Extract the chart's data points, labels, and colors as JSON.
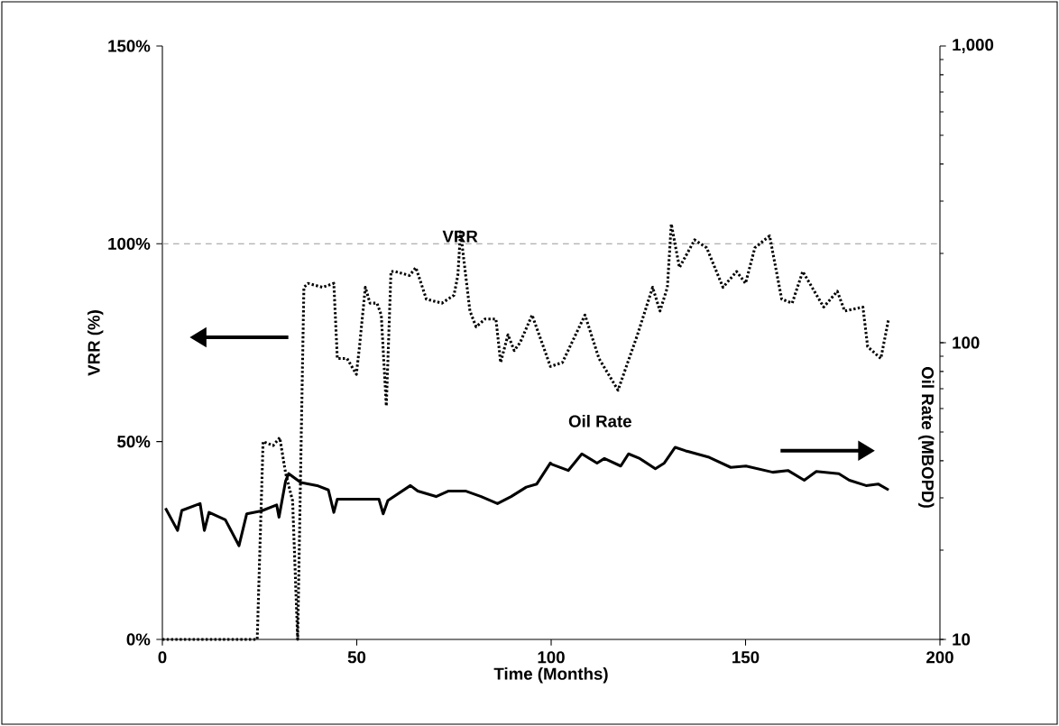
{
  "chart_data": {
    "type": "line",
    "xlabel": "Time (Months)",
    "ylabel": "VRR (%)",
    "y2label": "Oil Rate (MBOPD)",
    "xlim": [
      0,
      200
    ],
    "xticks": [
      0,
      50,
      100,
      150,
      200
    ],
    "ylim": [
      0,
      150
    ],
    "yticks": [
      {
        "value": 0,
        "label": "0%"
      },
      {
        "value": 50,
        "label": "50%"
      },
      {
        "value": 100,
        "label": "100%"
      },
      {
        "value": 150,
        "label": "150%"
      }
    ],
    "y2lim": [
      10,
      1000
    ],
    "y2ticks": [
      10,
      100,
      {
        "value": 1000,
        "label": "1,000"
      }
    ],
    "log": "y2",
    "ref_lines": [
      {
        "axis": "y",
        "value": 100,
        "color": "#999999",
        "line_style": "dashed"
      }
    ],
    "series": [
      {
        "name": "VRR",
        "color": "#000000",
        "line_style": "dotted",
        "x": [
          0,
          24.4,
          25.9,
          28.5,
          30.2,
          31.7,
          33.5,
          34.8,
          36.4,
          37.5,
          41.2,
          44.1,
          45,
          47.5,
          49.9,
          50.7,
          52.2,
          53.4,
          55.2,
          56.3,
          57.6,
          58.8,
          59.8,
          63.6,
          65.2,
          67.9,
          71.9,
          75,
          76,
          76.7,
          79.1,
          80.7,
          83,
          85.8,
          87,
          88.9,
          90.5,
          92,
          95.1,
          99.8,
          102.9,
          108.7,
          112.3,
          117.2,
          122.2,
          126.1,
          128,
          129.9,
          130.9,
          133,
          136.9,
          140,
          144.2,
          147.7,
          150,
          152.4,
          156.2,
          159.3,
          162,
          164.7,
          170.1,
          173.6,
          175.5,
          180.2,
          181.4,
          184.8,
          186.8
        ],
        "values": [
          0,
          0,
          50,
          49,
          51,
          42,
          35,
          0,
          89,
          90,
          89,
          90,
          71,
          71,
          67,
          74,
          89,
          85,
          85,
          82,
          59,
          93,
          93,
          92,
          94,
          86,
          85,
          87,
          92,
          103,
          83,
          79,
          81,
          81,
          70,
          77,
          73,
          75,
          82,
          69,
          70,
          82,
          71,
          63,
          77,
          89,
          83,
          89,
          105,
          94,
          101,
          99,
          89,
          93,
          90,
          99,
          102,
          86,
          85,
          93,
          84,
          88,
          83,
          84,
          74,
          71,
          81
        ]
      },
      {
        "name": "Oil Rate",
        "color": "#000000",
        "line_style": "solid",
        "axis": "y2",
        "x": [
          0.8,
          3.9,
          5,
          9.7,
          10.8,
          12,
          16.2,
          19.7,
          21.7,
          25.5,
          29.4,
          30,
          31.7,
          32.5,
          35.6,
          39.8,
          42.7,
          44.1,
          45,
          50.3,
          55.7,
          56.8,
          58,
          63.8,
          65.7,
          70.4,
          73.5,
          78.1,
          82,
          86.2,
          89.7,
          93.6,
          96.3,
          99.8,
          100.2,
          104.4,
          107.9,
          111.8,
          113.7,
          117.9,
          119.9,
          122.8,
          126.8,
          129.1,
          131.9,
          134.6,
          140.4,
          146.2,
          150.1,
          157,
          160.9,
          165.1,
          168.2,
          174,
          176.7,
          181,
          184.1,
          186.8
        ],
        "values": [
          27.7,
          23.3,
          27.2,
          28.7,
          23.3,
          26.8,
          25.3,
          20.7,
          26.5,
          27.1,
          28.4,
          25.8,
          34.2,
          36.2,
          33.8,
          33.0,
          31.9,
          26.8,
          29.7,
          29.7,
          29.7,
          26.5,
          29.4,
          33.0,
          31.6,
          30.3,
          31.6,
          31.6,
          30.3,
          28.7,
          30.3,
          32.6,
          33.4,
          39.3,
          38.9,
          37.1,
          42.2,
          39.3,
          40.7,
          38.4,
          42.2,
          40.7,
          37.6,
          39.3,
          44.4,
          43.2,
          41.2,
          38.0,
          38.4,
          36.6,
          37.1,
          34.4,
          36.8,
          36.2,
          34.4,
          33.0,
          33.4,
          31.9
        ]
      }
    ]
  }
}
